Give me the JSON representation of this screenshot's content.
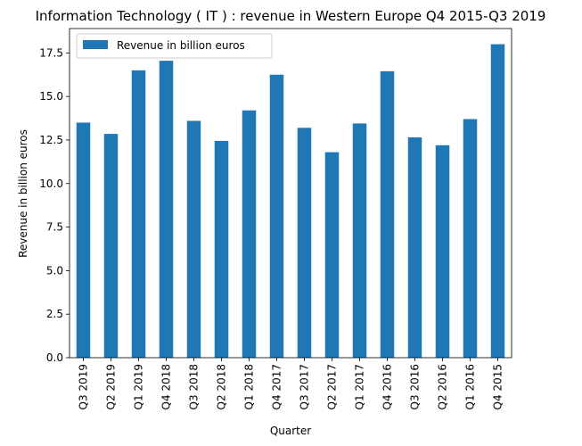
{
  "chart_data": {
    "type": "bar",
    "title": "Information Technology ( IT ) : revenue in Western Europe Q4 2015-Q3 2019",
    "xlabel": "Quarter",
    "ylabel": "Revenue in billion euros",
    "categories": [
      "Q3 2019",
      "Q2 2019",
      "Q1 2019",
      "Q4 2018",
      "Q3 2018",
      "Q2 2018",
      "Q1 2018",
      "Q4 2017",
      "Q3 2017",
      "Q2 2017",
      "Q1 2017",
      "Q4 2016",
      "Q3 2016",
      "Q2 2016",
      "Q1 2016",
      "Q4 2015"
    ],
    "series": [
      {
        "name": "Revenue in billion euros",
        "color": "#1f77b4",
        "values": [
          13.5,
          12.85,
          16.5,
          17.05,
          13.6,
          12.45,
          14.2,
          16.25,
          13.2,
          11.8,
          13.45,
          16.45,
          12.65,
          12.2,
          13.7,
          18.0
        ]
      }
    ],
    "ylim": [
      0,
      18.9
    ],
    "yticks": [
      0.0,
      2.5,
      5.0,
      7.5,
      10.0,
      12.5,
      15.0,
      17.5
    ],
    "ytick_labels": [
      "0.0",
      "2.5",
      "5.0",
      "7.5",
      "10.0",
      "12.5",
      "15.0",
      "17.5"
    ],
    "grid": false,
    "legend_position": "upper left"
  }
}
